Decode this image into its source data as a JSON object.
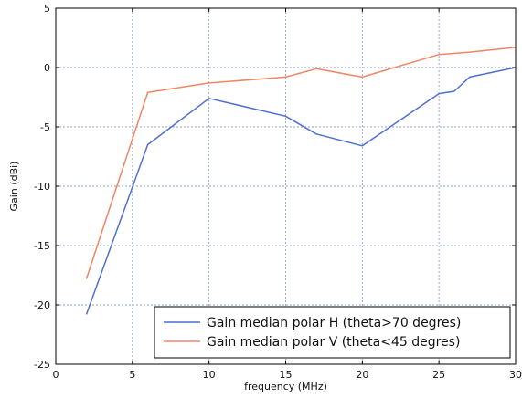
{
  "chart_data": {
    "type": "line",
    "title": "",
    "xlabel": "frequency (MHz)",
    "ylabel": "Gain (dBi)",
    "xlim": [
      0,
      30
    ],
    "ylim": [
      -25,
      5
    ],
    "xticks": [
      0,
      5,
      10,
      15,
      20,
      25,
      30
    ],
    "yticks": [
      -25,
      -20,
      -15,
      -10,
      -5,
      0,
      5
    ],
    "grid": true,
    "legend_position": "lower-right",
    "series": [
      {
        "name": "Gain median polar H (theta>70 degres)",
        "color": "#4f6fd1",
        "x": [
          2,
          6,
          10,
          15,
          17,
          20,
          25,
          26,
          27,
          30
        ],
        "y": [
          -20.8,
          -6.5,
          -2.6,
          -4.1,
          -5.6,
          -6.6,
          -2.2,
          -2.0,
          -0.8,
          0.0
        ]
      },
      {
        "name": "Gain median polar V (theta<45 degres)",
        "color": "#f08565",
        "x": [
          2,
          6,
          10,
          15,
          17,
          20,
          25,
          27,
          30
        ],
        "y": [
          -17.8,
          -2.1,
          -1.3,
          -0.8,
          -0.1,
          -0.8,
          1.1,
          1.3,
          1.7
        ]
      }
    ]
  }
}
